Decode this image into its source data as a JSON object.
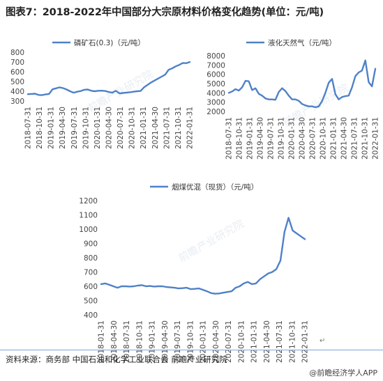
{
  "title": "图表7：2018-2022年中国部分大宗原材料价格变化趋势(单位：元/吨)",
  "source": "资料来源：商务部 中国石油和化学工业联合会 前瞻产业研究院",
  "brand": "@前瞻经济学人APP",
  "return_mark": "↵",
  "watermark": "前瞻产业研究院",
  "colors": {
    "line": "#4f81c7",
    "tick": "#444444",
    "title": "#222222"
  },
  "chart_data": [
    {
      "type": "line",
      "legend": "磷矿石(0.3)（元/吨）",
      "ylim": [
        300,
        800
      ],
      "yticks": [
        300,
        400,
        500,
        600,
        700,
        800
      ],
      "xticks": [
        "2018-07-31",
        "2018-10-31",
        "2019-01-31",
        "2019-04-30",
        "2019-07-31",
        "2019-10-31",
        "2020-01-31",
        "2020-04-30",
        "2020-07-31",
        "2020-10-31",
        "2021-01-31",
        "2021-04-30",
        "2021-07-31",
        "2021-10-31",
        "2022-01-31"
      ],
      "values": [
        370,
        372,
        375,
        362,
        360,
        368,
        372,
        420,
        430,
        440,
        432,
        418,
        400,
        385,
        395,
        402,
        415,
        418,
        405,
        400,
        405,
        406,
        402,
        392,
        385,
        405,
        378,
        382,
        386,
        390,
        395,
        400,
        402,
        440,
        465,
        490,
        510,
        530,
        550,
        570,
        620,
        635,
        655,
        670,
        690,
        688,
        700
      ]
    },
    {
      "type": "line",
      "legend": "液化天然气（元/吨）",
      "ylim": [
        2000,
        8000
      ],
      "yticks": [
        2000,
        3000,
        4000,
        5000,
        6000,
        7000,
        8000
      ],
      "xticks": [
        "2018-07-31",
        "2018-10-31",
        "2019-01-31",
        "2019-04-30",
        "2019-07-31",
        "2019-10-31",
        "2020-01-31",
        "2020-04-30",
        "2020-07-31",
        "2020-10-31",
        "2021-01-31",
        "2021-04-30",
        "2021-07-31",
        "2021-10-31",
        "2022-01-31"
      ],
      "values": [
        4000,
        4150,
        4400,
        4250,
        4600,
        5300,
        5250,
        4300,
        4500,
        3900,
        3700,
        3400,
        3300,
        3300,
        3250,
        4100,
        4500,
        4200,
        3700,
        3300,
        3300,
        3150,
        2800,
        2650,
        2550,
        2550,
        2450,
        2550,
        3100,
        4000,
        5100,
        5500,
        3850,
        3300,
        3550,
        3650,
        3700,
        4600,
        5800,
        6200,
        6400,
        7500,
        5150,
        4700,
        6600
      ]
    },
    {
      "type": "line",
      "legend": "烟煤优混（现货）（元/吨）",
      "ylim": [
        400,
        1200
      ],
      "yticks": [
        400,
        500,
        600,
        700,
        800,
        900,
        1000,
        1100,
        1200
      ],
      "xticks": [
        "2018-01-31",
        "2018-04-30",
        "2018-07-31",
        "2018-10-31",
        "2019-01-31",
        "2019-04-30",
        "2019-07-31",
        "2019-10-31",
        "2020-01-31",
        "2020-04-30",
        "2020-07-31",
        "2020-10-31",
        "2021-01-31",
        "2021-04-30",
        "2021-07-31",
        "2021-10-31",
        "2022-01-31"
      ],
      "values": [
        615,
        620,
        610,
        600,
        590,
        600,
        600,
        598,
        600,
        605,
        608,
        600,
        602,
        598,
        600,
        600,
        595,
        592,
        590,
        585,
        587,
        590,
        580,
        582,
        585,
        575,
        565,
        552,
        548,
        550,
        555,
        560,
        565,
        590,
        600,
        620,
        630,
        615,
        620,
        650,
        670,
        690,
        700,
        720,
        780,
        980,
        1080,
        990,
        970,
        950,
        930
      ]
    }
  ]
}
